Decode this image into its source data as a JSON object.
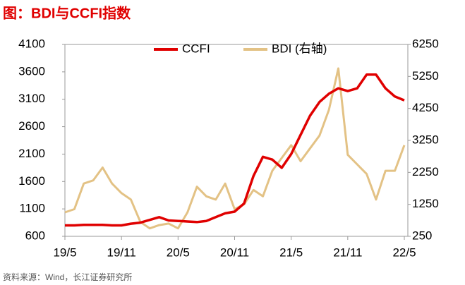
{
  "chart_data": {
    "type": "line",
    "title": "图：BDI与CCFI指数",
    "source": "资料来源：Wind，长江证券研究所",
    "categories": [
      "19/5",
      null,
      null,
      null,
      null,
      null,
      "19/11",
      null,
      null,
      null,
      null,
      null,
      "20/5",
      null,
      null,
      null,
      null,
      null,
      "20/11",
      null,
      null,
      null,
      null,
      null,
      "21/5",
      null,
      null,
      null,
      null,
      null,
      "21/11",
      null,
      null,
      null,
      null,
      null,
      "22/5"
    ],
    "series": [
      {
        "name": "CCFI",
        "color": "#e00000",
        "values": [
          800,
          800,
          810,
          810,
          810,
          800,
          800,
          830,
          850,
          900,
          950,
          890,
          880,
          870,
          860,
          880,
          950,
          1020,
          1050,
          1200,
          1700,
          2050,
          2000,
          1850,
          2100,
          2450,
          2800,
          3050,
          3200,
          3300,
          3250,
          3300,
          3550,
          3550,
          3300,
          3150,
          3080
        ]
      },
      {
        "name": "BDI (右轴)",
        "color": "#e3c285",
        "axis": "y2",
        "values": [
          1000,
          1100,
          1900,
          2000,
          2400,
          1900,
          1600,
          1400,
          700,
          500,
          600,
          650,
          500,
          1000,
          1800,
          1500,
          1400,
          1900,
          1100,
          1250,
          1700,
          1500,
          2300,
          2700,
          3100,
          2600,
          3000,
          3400,
          4200,
          5500,
          2800,
          2500,
          2200,
          1400,
          2300,
          2300,
          3100
        ]
      }
    ],
    "ylim": [
      600,
      4100
    ],
    "yticks": [
      600,
      1100,
      1600,
      2100,
      2600,
      3100,
      3600,
      4100
    ],
    "y2lim": [
      250,
      6250
    ],
    "y2ticks": [
      250,
      1250,
      2250,
      3250,
      4250,
      5250,
      6250
    ],
    "legend": "top"
  }
}
